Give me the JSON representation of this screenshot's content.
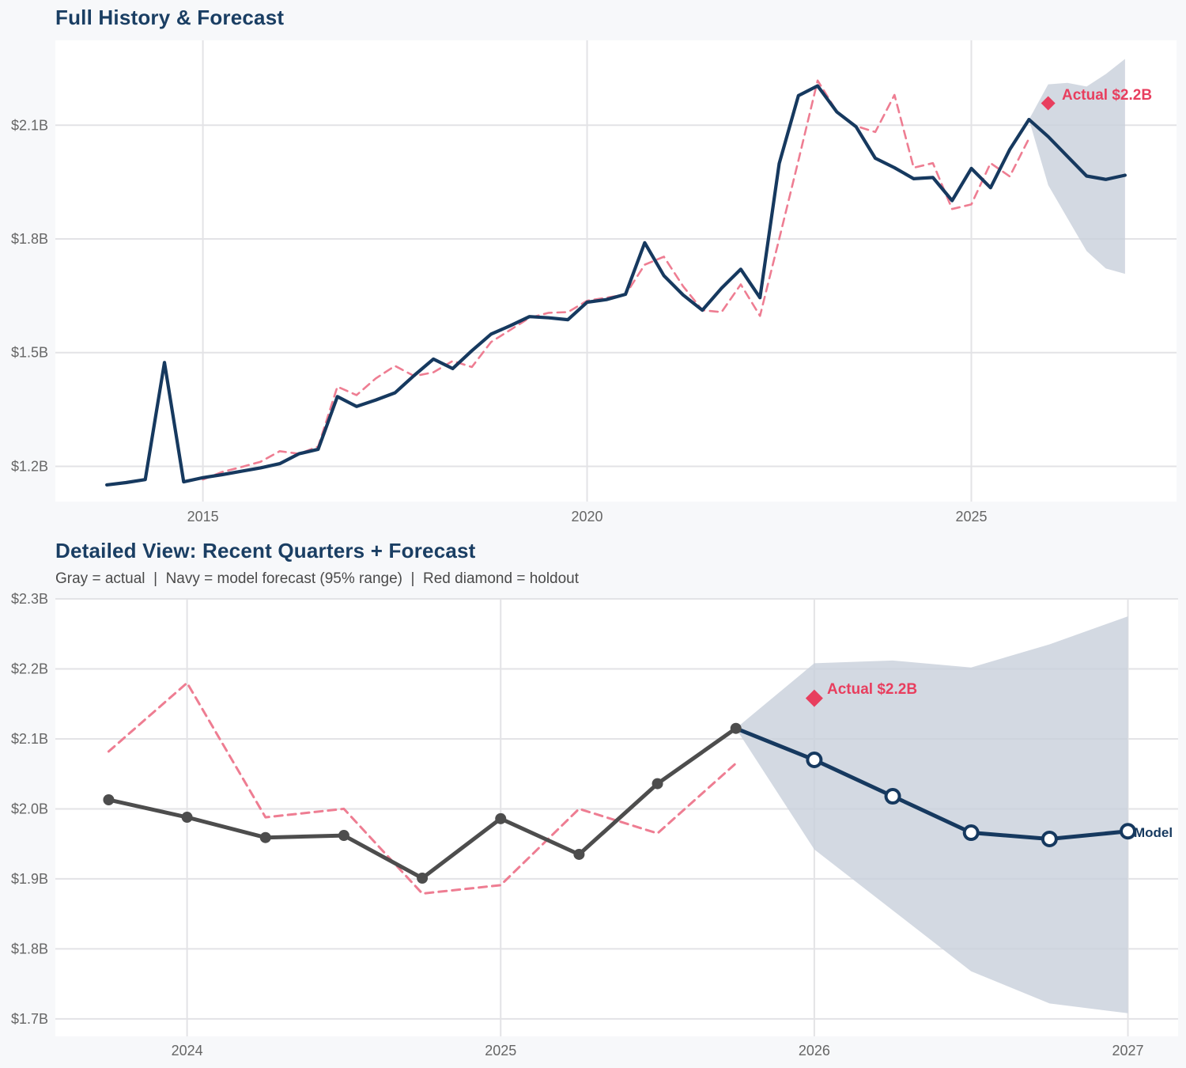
{
  "colors": {
    "page_bg": "#f7f8fa",
    "plot_bg": "#ffffff",
    "grid": "#e3e3e6",
    "navy": "#16395f",
    "pink": "#ee7d92",
    "red": "#e83e5e",
    "gray": "#4d4d4d",
    "band": "#c8d0db",
    "tick": "#666666",
    "title": "#1a3e63",
    "subtitle": "#4a4a4a"
  },
  "chart_data": [
    {
      "id": "full-history-forecast",
      "type": "line",
      "title": "Full History & Forecast",
      "x_axis": {
        "range": [
          2013.08,
          2027.67
        ],
        "grid": true,
        "ticks": [
          {
            "value": 2015,
            "label": "2015"
          },
          {
            "value": 2020,
            "label": "2020"
          },
          {
            "value": 2025,
            "label": "2025"
          }
        ]
      },
      "y_axis": {
        "range": [
          1.107,
          2.324
        ],
        "grid": true,
        "ticks": [
          {
            "value": 1.2,
            "label": "$1.2B"
          },
          {
            "value": 1.5,
            "label": "$1.5B"
          },
          {
            "value": 1.8,
            "label": "$1.8B"
          },
          {
            "value": 2.1,
            "label": "$2.1B"
          }
        ]
      },
      "series": [
        {
          "name": "model-fit",
          "color": "pink",
          "style": "dashed",
          "x_start": 2015.0,
          "x_step": 0.25,
          "values": [
            1.165,
            1.185,
            1.198,
            1.212,
            1.24,
            1.233,
            1.252,
            1.41,
            1.388,
            1.432,
            1.465,
            1.438,
            1.448,
            1.478,
            1.462,
            1.528,
            1.56,
            1.592,
            1.605,
            1.607,
            1.637,
            1.645,
            1.653,
            1.732,
            1.753,
            1.675,
            1.612,
            1.607,
            1.68,
            1.597,
            1.8,
            2.007,
            2.218,
            2.136,
            2.098,
            2.082,
            2.18,
            1.988,
            2.0,
            1.879,
            1.891,
            2.0,
            1.965,
            2.065
          ]
        },
        {
          "name": "actual-history",
          "color": "navy",
          "style": "solid",
          "x_start": 2013.75,
          "x_step": 0.25,
          "values": [
            1.151,
            1.157,
            1.165,
            1.474,
            1.159,
            1.17,
            1.178,
            1.187,
            1.196,
            1.207,
            1.233,
            1.245,
            1.384,
            1.358,
            1.375,
            1.394,
            1.44,
            1.483,
            1.458,
            1.505,
            1.549,
            1.571,
            1.595,
            1.592,
            1.587,
            1.633,
            1.64,
            1.654,
            1.79,
            1.703,
            1.652,
            1.612,
            1.67,
            1.72,
            1.645,
            1.999,
            2.178,
            2.204,
            2.135,
            2.096,
            2.013,
            1.988,
            1.959,
            1.962,
            1.901,
            1.986,
            1.935,
            2.036,
            2.115
          ]
        },
        {
          "name": "model-forecast",
          "color": "navy",
          "style": "solid",
          "x_start": 2025.75,
          "x_step": 0.25,
          "values": [
            2.115,
            2.07,
            2.018,
            1.966,
            1.957,
            1.968
          ]
        }
      ],
      "band": {
        "name": "forecast-95-range",
        "x_start": 2025.75,
        "x_step": 0.25,
        "upper": [
          2.115,
          2.208,
          2.212,
          2.202,
          2.235,
          2.275
        ],
        "lower": [
          2.115,
          1.942,
          1.855,
          1.768,
          1.722,
          1.708
        ]
      },
      "annotation": {
        "label": "Actual $2.2B",
        "x": 2026.0,
        "y": 2.158
      }
    },
    {
      "id": "detailed-view",
      "type": "line",
      "title": "Detailed View: Recent Quarters + Forecast",
      "subtitle": "Gray = actual  |  Navy = model forecast (95% range)  |  Red diamond = holdout",
      "x_axis": {
        "range": [
          2023.58,
          2027.16
        ],
        "grid": true,
        "ticks": [
          {
            "value": 2024,
            "label": "2024"
          },
          {
            "value": 2025,
            "label": "2025"
          },
          {
            "value": 2026,
            "label": "2026"
          },
          {
            "value": 2027,
            "label": "2027"
          }
        ]
      },
      "y_axis": {
        "range": [
          1.675,
          2.3
        ],
        "grid": true,
        "ticks": [
          {
            "value": 1.7,
            "label": "$1.7B"
          },
          {
            "value": 1.8,
            "label": "$1.8B"
          },
          {
            "value": 1.9,
            "label": "$1.9B"
          },
          {
            "value": 2.0,
            "label": "$2.0B"
          },
          {
            "value": 2.1,
            "label": "$2.1B"
          },
          {
            "value": 2.2,
            "label": "$2.2B"
          },
          {
            "value": 2.3,
            "label": "$2.3B"
          }
        ]
      },
      "series": [
        {
          "name": "model-fit",
          "color": "pink",
          "style": "dashed",
          "x_start": 2023.75,
          "x_step": 0.25,
          "values": [
            2.082,
            2.18,
            1.988,
            2.0,
            1.879,
            1.891,
            2.0,
            1.965,
            2.065
          ]
        },
        {
          "name": "actual",
          "color": "gray",
          "style": "solid",
          "marker": "circle_filled",
          "x_start": 2023.75,
          "x_step": 0.25,
          "values": [
            2.013,
            1.988,
            1.959,
            1.962,
            1.901,
            1.986,
            1.935,
            2.036,
            2.115
          ]
        },
        {
          "name": "model-forecast",
          "color": "navy",
          "style": "solid",
          "marker": "circle_open",
          "marker_skip_first": true,
          "label": "Model",
          "x_start": 2025.75,
          "x_step": 0.25,
          "values": [
            2.115,
            2.07,
            2.018,
            1.966,
            1.957,
            1.968
          ]
        }
      ],
      "band": {
        "name": "forecast-95-range",
        "x_start": 2025.75,
        "x_step": 0.25,
        "upper": [
          2.115,
          2.208,
          2.212,
          2.202,
          2.235,
          2.275
        ],
        "lower": [
          2.115,
          1.942,
          1.855,
          1.768,
          1.722,
          1.708
        ]
      },
      "annotation": {
        "label": "Actual $2.2B",
        "x": 2026.0,
        "y": 2.158
      }
    }
  ]
}
